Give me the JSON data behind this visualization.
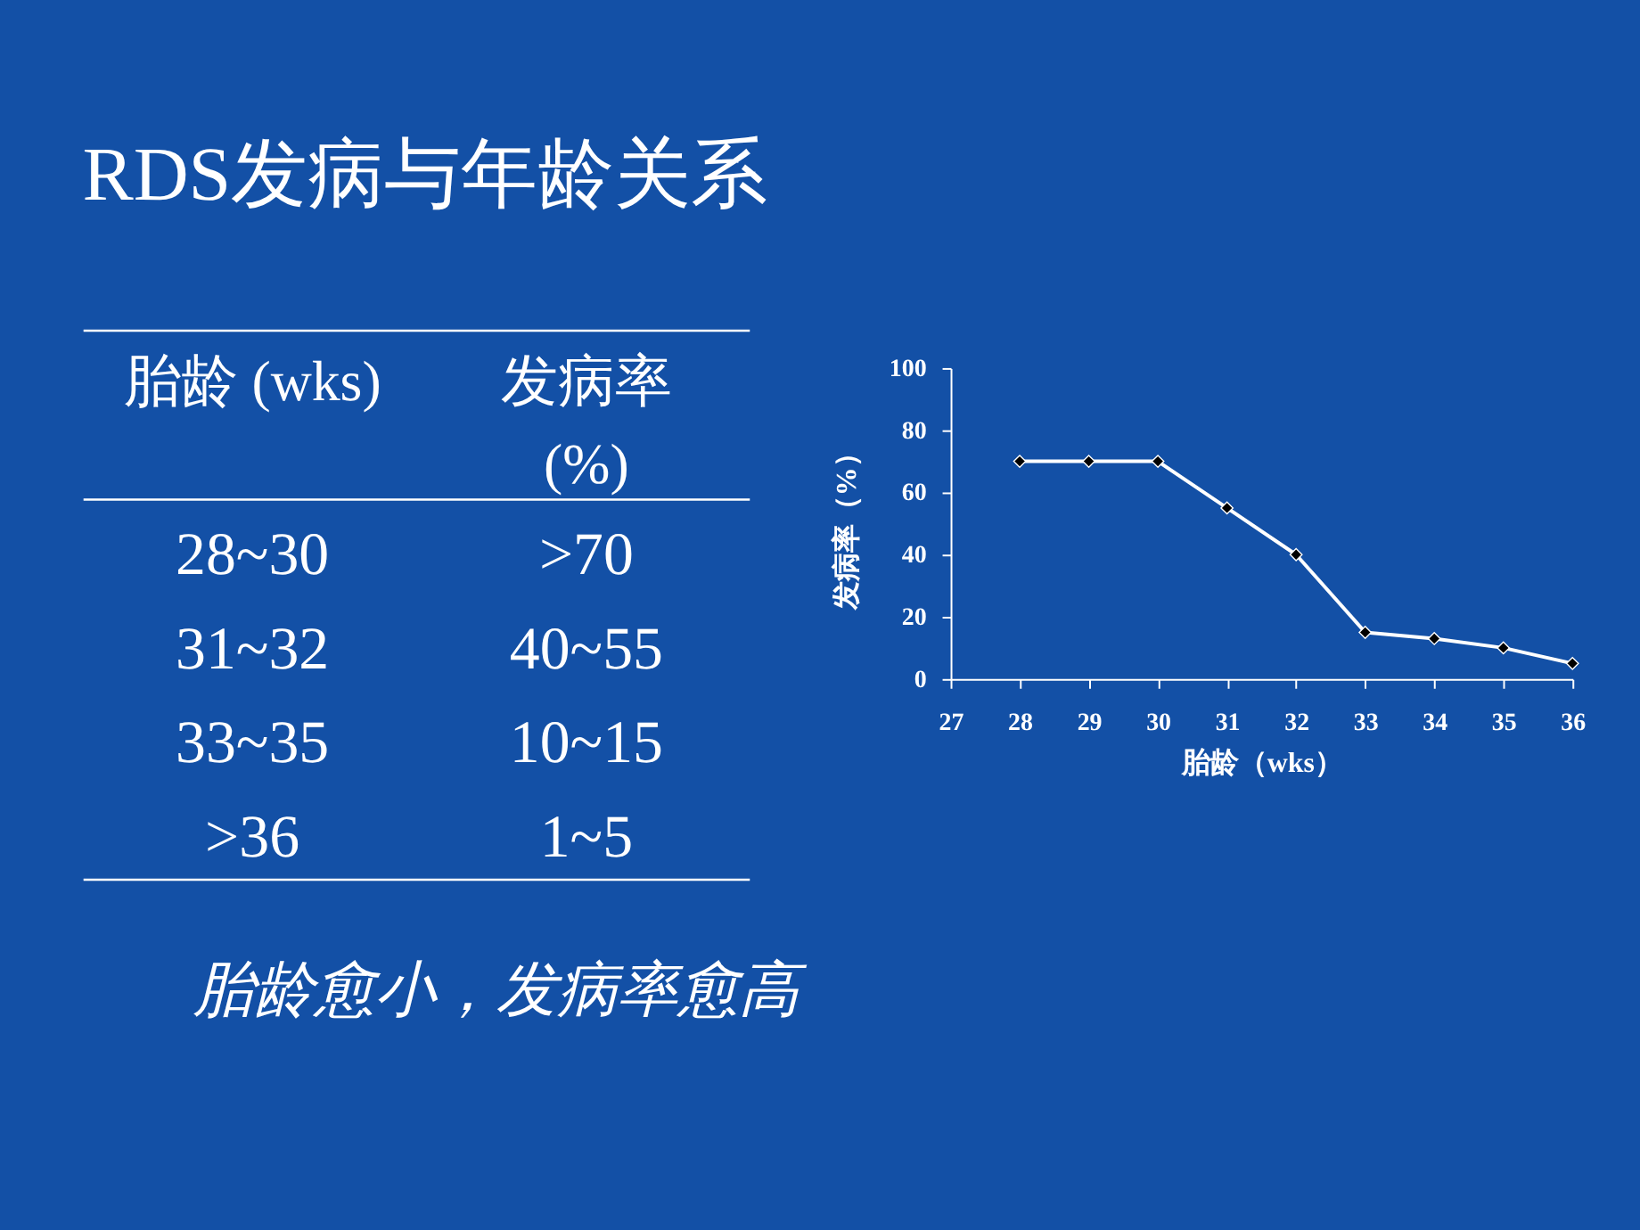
{
  "chart_data": [
    {
      "type": "other",
      "title": "RDS发病与年龄关系",
      "annotations": [
        "胎龄 (wks)",
        "发病率\n(%)",
        "28~30",
        ">70",
        "31~32",
        "40~55",
        "33~35",
        "10~15",
        ">36",
        "1~5",
        "胎龄愈小，发病率愈高"
      ]
    },
    {
      "type": "line",
      "xlabel": "胎龄（wks）",
      "ylabel": "发病率（%）",
      "x": [
        28,
        29,
        30,
        31,
        32,
        33,
        34,
        35,
        36
      ],
      "series": [
        {
          "color": "#ffffff",
          "values": [
            70,
            70,
            70,
            55,
            40,
            15,
            13,
            10,
            5
          ]
        }
      ],
      "xlim": [
        27,
        36
      ],
      "xticks": [
        27,
        28,
        29,
        30,
        31,
        32,
        33,
        34,
        35,
        36
      ],
      "ylim": [
        0,
        100
      ],
      "yticks": [
        0,
        20,
        40,
        60,
        80,
        100
      ],
      "grid": false,
      "legend": false,
      "marker": "diamond",
      "line_style": "solid"
    }
  ]
}
